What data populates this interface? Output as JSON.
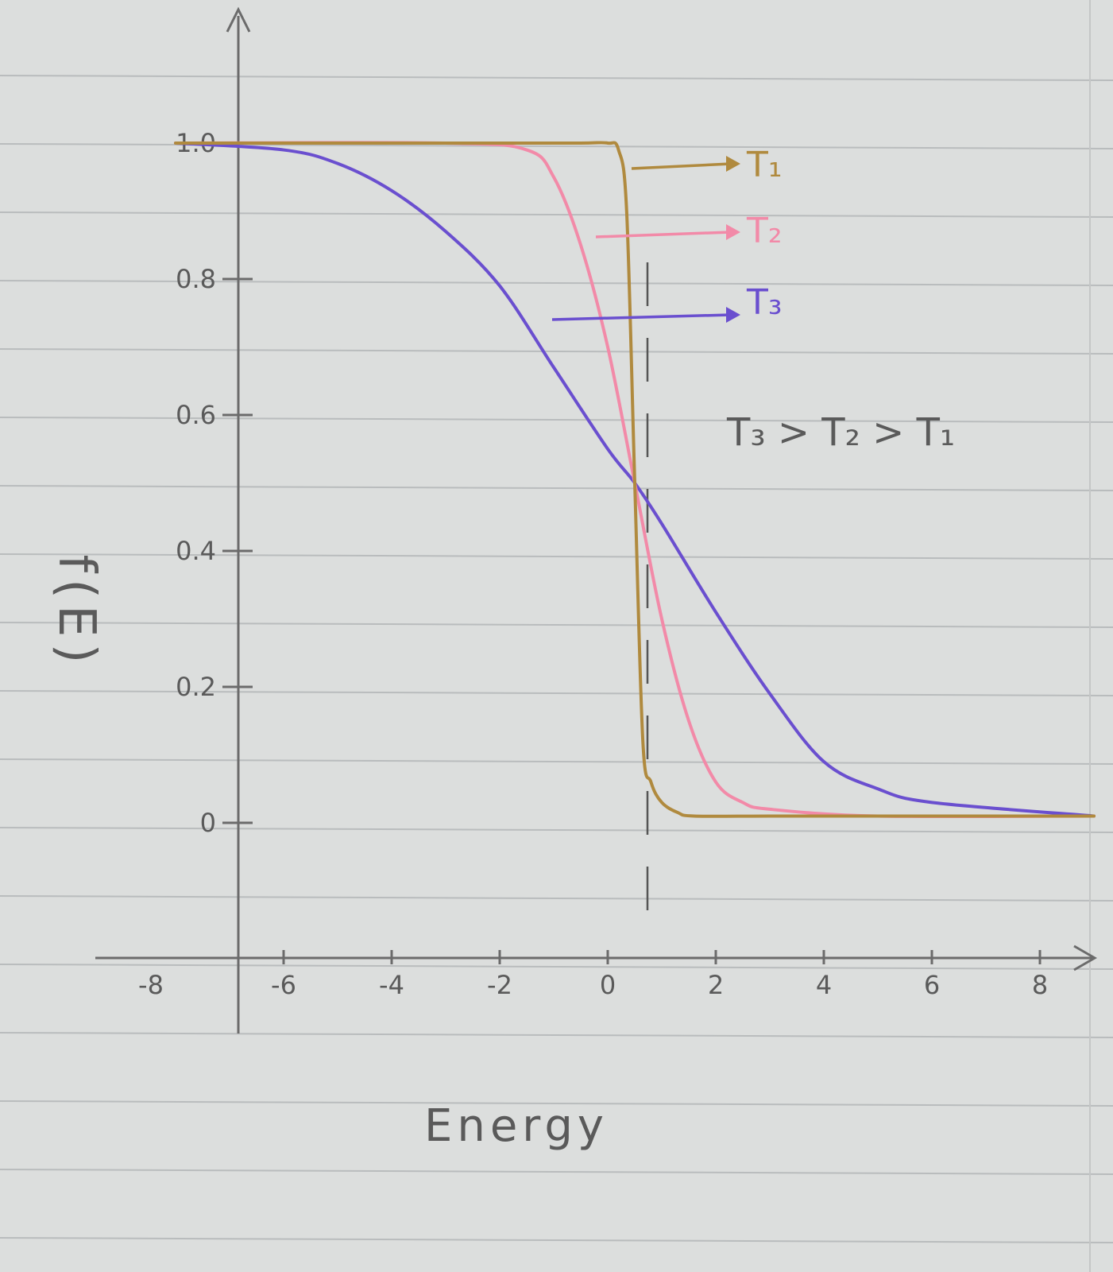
{
  "chart_data": {
    "type": "line",
    "title": "",
    "xlabel": "Energy",
    "ylabel": "f(E)",
    "xlim": [
      -8,
      9
    ],
    "ylim": [
      0,
      1.0
    ],
    "x_ticks": [
      "-8",
      "-6",
      "-4",
      "-2",
      "0",
      "2",
      "4",
      "6",
      "8"
    ],
    "x_tick_values": [
      -8,
      -6,
      -4,
      -2,
      0,
      2,
      4,
      6,
      8
    ],
    "y_ticks": [
      "0",
      "0.2",
      "0.4",
      "0.6",
      "0.8",
      "1.0"
    ],
    "y_tick_values": [
      0,
      0.2,
      0.4,
      0.6,
      0.8,
      1.0
    ],
    "grid": false,
    "series": [
      {
        "name": "T₁",
        "color": "#b08a3e",
        "x": [
          -8,
          -2,
          -0.5,
          0,
          0.2,
          0.35,
          0.5,
          0.65,
          0.8,
          1.0,
          1.3,
          1.6,
          3,
          5,
          9
        ],
        "y": [
          1.0,
          1.0,
          1.0,
          1.0,
          0.99,
          0.9,
          0.5,
          0.12,
          0.06,
          0.03,
          0.015,
          0.01,
          0.01,
          0.01,
          0.01
        ]
      },
      {
        "name": "T₂",
        "color": "#f28aa8",
        "x": [
          -8,
          -3,
          -1.5,
          -1,
          -0.5,
          0,
          0.5,
          1.0,
          1.5,
          2.0,
          2.5,
          3,
          5,
          9
        ],
        "y": [
          1.0,
          1.0,
          0.99,
          0.95,
          0.85,
          0.7,
          0.5,
          0.3,
          0.15,
          0.06,
          0.03,
          0.02,
          0.01,
          0.01
        ]
      },
      {
        "name": "T₃",
        "color": "#6a4fcf",
        "x": [
          -8,
          -6,
          -5,
          -4,
          -3,
          -2,
          -1,
          0,
          0.5,
          1,
          2,
          3,
          4,
          5,
          6,
          9
        ],
        "y": [
          1.0,
          0.99,
          0.97,
          0.93,
          0.87,
          0.79,
          0.67,
          0.55,
          0.5,
          0.44,
          0.31,
          0.19,
          0.09,
          0.05,
          0.03,
          0.01
        ]
      }
    ],
    "annotations": {
      "relation": "T₃ > T₂ > T₁"
    }
  }
}
